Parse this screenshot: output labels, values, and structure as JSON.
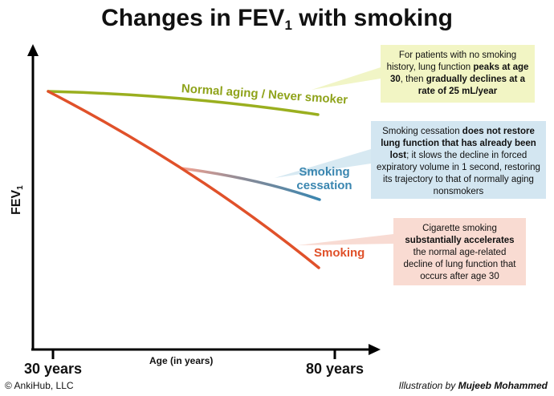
{
  "chart_data": {
    "type": "line",
    "title_main": "Changes in FEV",
    "title_sub": "1",
    "title_tail": " with smoking",
    "ylabel_main": "FEV",
    "ylabel_sub": "1",
    "xlabel": "Age (in years)",
    "x_ticks": [
      "30 years",
      "80 years"
    ],
    "xlim": [
      30,
      80
    ],
    "series": [
      {
        "name": "Normal aging / Never smoker",
        "color": "#9aaf1f"
      },
      {
        "name": "Smoking cessation",
        "color": "#3a86b0"
      },
      {
        "name": "Smoking",
        "color": "#e0512a"
      }
    ],
    "annotations": [
      {
        "bg": "#f2f5c4",
        "parts": [
          {
            "t": "For patients with no smoking history, lung function ",
            "b": false
          },
          {
            "t": "peaks at age 30",
            "b": true
          },
          {
            "t": ", then ",
            "b": false
          },
          {
            "t": "gradually declines at a rate of 25 mL/year",
            "b": true
          }
        ]
      },
      {
        "bg": "#d3e6f1",
        "parts": [
          {
            "t": "Smoking cessation ",
            "b": false
          },
          {
            "t": "does not restore lung function that has already been lost",
            "b": true
          },
          {
            "t": "; it slows the decline in forced expiratory volume in 1 second, restoring its trajectory to that of normally aging nonsmokers",
            "b": false
          }
        ]
      },
      {
        "bg": "#f9dbd2",
        "parts": [
          {
            "t": "Cigarette smoking ",
            "b": false
          },
          {
            "t": "substantially accelerates",
            "b": true
          },
          {
            "t": " the normal age-related decline of lung function that occurs after age 30",
            "b": false
          }
        ]
      }
    ]
  },
  "footer": {
    "copyright": "© AnkiHub, LLC",
    "credit_prefix": "Illustration by ",
    "credit_name": "Mujeeb Mohammed"
  }
}
